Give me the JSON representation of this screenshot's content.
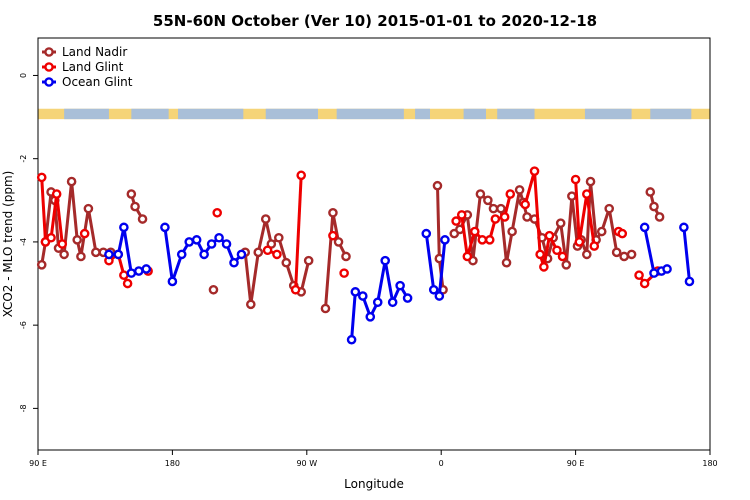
{
  "chart_data": {
    "type": "line",
    "title": "55N-60N October (Ver 10)   2015-01-01 to 2020-12-18",
    "xlabel": "Longitude",
    "ylabel": "XCO2 - MLO trend (ppm)",
    "xlim": [
      90,
      450
    ],
    "ylim": [
      -9,
      0.9
    ],
    "x_ticks": [
      {
        "value": 90,
        "label": "90 E"
      },
      {
        "value": 162,
        "label": "180"
      },
      {
        "value": 234,
        "label": "90 W"
      },
      {
        "value": 306,
        "label": "0"
      },
      {
        "value": 378,
        "label": "90 E"
      },
      {
        "value": 450,
        "label": "180"
      }
    ],
    "y_ticks": [
      {
        "value": 0,
        "label": "0"
      },
      {
        "value": -2,
        "label": "-2"
      },
      {
        "value": -4,
        "label": "-4"
      },
      {
        "value": -6,
        "label": "-6"
      },
      {
        "value": -8,
        "label": "-8"
      }
    ],
    "grid": false,
    "legend_position": "top-left",
    "land_mask_band": {
      "y_top": -0.8,
      "y_bottom": -1.05,
      "land_color": "#f5d478",
      "ocean_color": "#a9bfd8"
    },
    "series": [
      {
        "name": "Land Nadir",
        "color": "#a52a2a",
        "segments": [
          [
            [
              92,
              -4.55
            ],
            [
              94,
              -4.0
            ],
            [
              97,
              -2.8
            ],
            [
              99,
              -3.0
            ],
            [
              101,
              -4.15
            ],
            [
              104,
              -4.3
            ],
            [
              108,
              -2.55
            ],
            [
              111,
              -3.95
            ],
            [
              113,
              -4.35
            ],
            [
              117,
              -3.2
            ],
            [
              121,
              -4.25
            ],
            [
              125,
              -4.25
            ],
            [
              129,
              -4.25
            ]
          ],
          [
            [
              140,
              -2.85
            ],
            [
              142,
              -3.15
            ],
            [
              146,
              -3.45
            ]
          ],
          [
            [
              184,
              -5.15
            ]
          ],
          [
            [
              201,
              -4.25
            ],
            [
              204,
              -5.5
            ],
            [
              208,
              -4.25
            ],
            [
              212,
              -3.45
            ],
            [
              215,
              -4.05
            ],
            [
              219,
              -3.9
            ],
            [
              223,
              -4.5
            ],
            [
              227,
              -5.05
            ],
            [
              231,
              -5.2
            ],
            [
              235,
              -4.45
            ]
          ],
          [
            [
              244,
              -5.6
            ],
            [
              248,
              -3.3
            ],
            [
              251,
              -4.0
            ],
            [
              255,
              -4.35
            ]
          ],
          [
            [
              304,
              -2.65
            ],
            [
              305,
              -4.4
            ],
            [
              307,
              -5.15
            ]
          ],
          [
            [
              313,
              -3.8
            ],
            [
              316,
              -3.7
            ],
            [
              320,
              -3.35
            ],
            [
              323,
              -4.45
            ],
            [
              327,
              -2.85
            ],
            [
              331,
              -3.0
            ],
            [
              334,
              -3.2
            ],
            [
              338,
              -3.2
            ],
            [
              341,
              -4.5
            ],
            [
              344,
              -3.75
            ],
            [
              348,
              -2.75
            ],
            [
              350,
              -3.05
            ],
            [
              352,
              -3.4
            ],
            [
              356,
              -3.45
            ],
            [
              360,
              -3.9
            ],
            [
              363,
              -4.4
            ],
            [
              366,
              -3.9
            ],
            [
              370,
              -3.55
            ],
            [
              373,
              -4.55
            ],
            [
              376,
              -2.9
            ],
            [
              379,
              -4.1
            ],
            [
              381,
              -3.95
            ],
            [
              384,
              -4.3
            ],
            [
              386,
              -2.55
            ],
            [
              389,
              -3.95
            ],
            [
              392,
              -3.75
            ],
            [
              396,
              -3.2
            ],
            [
              400,
              -4.25
            ],
            [
              404,
              -4.35
            ],
            [
              408,
              -4.3
            ]
          ],
          [
            [
              418,
              -2.8
            ],
            [
              420,
              -3.15
            ],
            [
              423,
              -3.4
            ]
          ]
        ]
      },
      {
        "name": "Land Glint",
        "color": "#ee0000",
        "segments": [
          [
            [
              92,
              -2.45
            ],
            [
              94,
              -4.0
            ],
            [
              97,
              -3.9
            ],
            [
              100,
              -2.85
            ],
            [
              103,
              -4.05
            ]
          ],
          [
            [
              115,
              -3.8
            ]
          ],
          [
            [
              128,
              -4.45
            ],
            [
              133,
              -4.3
            ],
            [
              136,
              -4.8
            ],
            [
              138,
              -5.0
            ]
          ],
          [
            [
              149,
              -4.7
            ]
          ],
          [
            [
              186,
              -3.3
            ]
          ],
          [
            [
              213,
              -4.2
            ],
            [
              218,
              -4.3
            ]
          ],
          [
            [
              228,
              -5.15
            ],
            [
              231,
              -2.4
            ]
          ],
          [
            [
              248,
              -3.85
            ]
          ],
          [
            [
              254,
              -4.75
            ]
          ],
          [
            [
              314,
              -3.5
            ],
            [
              317,
              -3.35
            ],
            [
              320,
              -4.35
            ],
            [
              324,
              -3.75
            ],
            [
              328,
              -3.95
            ],
            [
              332,
              -3.95
            ],
            [
              335,
              -3.45
            ],
            [
              340,
              -3.4
            ],
            [
              343,
              -2.85
            ]
          ],
          [
            [
              351,
              -3.1
            ],
            [
              356,
              -2.3
            ],
            [
              359,
              -4.3
            ],
            [
              361,
              -4.6
            ],
            [
              364,
              -3.85
            ],
            [
              368,
              -4.2
            ],
            [
              371,
              -4.35
            ]
          ],
          [
            [
              378,
              -2.5
            ],
            [
              380,
              -4.0
            ],
            [
              384,
              -2.85
            ],
            [
              388,
              -4.1
            ]
          ],
          [
            [
              401,
              -3.75
            ],
            [
              403,
              -3.8
            ]
          ],
          [
            [
              412,
              -4.8
            ],
            [
              415,
              -5.0
            ],
            [
              422,
              -4.7
            ]
          ]
        ]
      },
      {
        "name": "Ocean Glint",
        "color": "#0000ee",
        "segments": [
          [
            [
              128,
              -4.3
            ],
            [
              133,
              -4.3
            ],
            [
              136,
              -3.65
            ],
            [
              140,
              -4.75
            ],
            [
              144,
              -4.7
            ],
            [
              148,
              -4.65
            ]
          ],
          [
            [
              158,
              -3.65
            ],
            [
              162,
              -4.95
            ],
            [
              167,
              -4.3
            ],
            [
              171,
              -4.0
            ],
            [
              175,
              -3.95
            ],
            [
              179,
              -4.3
            ],
            [
              183,
              -4.05
            ],
            [
              187,
              -3.9
            ],
            [
              191,
              -4.05
            ],
            [
              195,
              -4.5
            ],
            [
              199,
              -4.3
            ]
          ],
          [
            [
              258,
              -6.35
            ],
            [
              260,
              -5.2
            ],
            [
              264,
              -5.3
            ],
            [
              268,
              -5.8
            ],
            [
              272,
              -5.45
            ],
            [
              276,
              -4.45
            ],
            [
              280,
              -5.45
            ],
            [
              284,
              -5.05
            ],
            [
              288,
              -5.35
            ]
          ],
          [
            [
              298,
              -3.8
            ],
            [
              302,
              -5.15
            ],
            [
              305,
              -5.3
            ],
            [
              308,
              -3.95
            ]
          ],
          [
            [
              415,
              -3.65
            ],
            [
              420,
              -4.75
            ],
            [
              424,
              -4.7
            ],
            [
              427,
              -4.65
            ]
          ],
          [
            [
              436,
              -3.65
            ],
            [
              439,
              -4.95
            ]
          ]
        ]
      }
    ]
  }
}
